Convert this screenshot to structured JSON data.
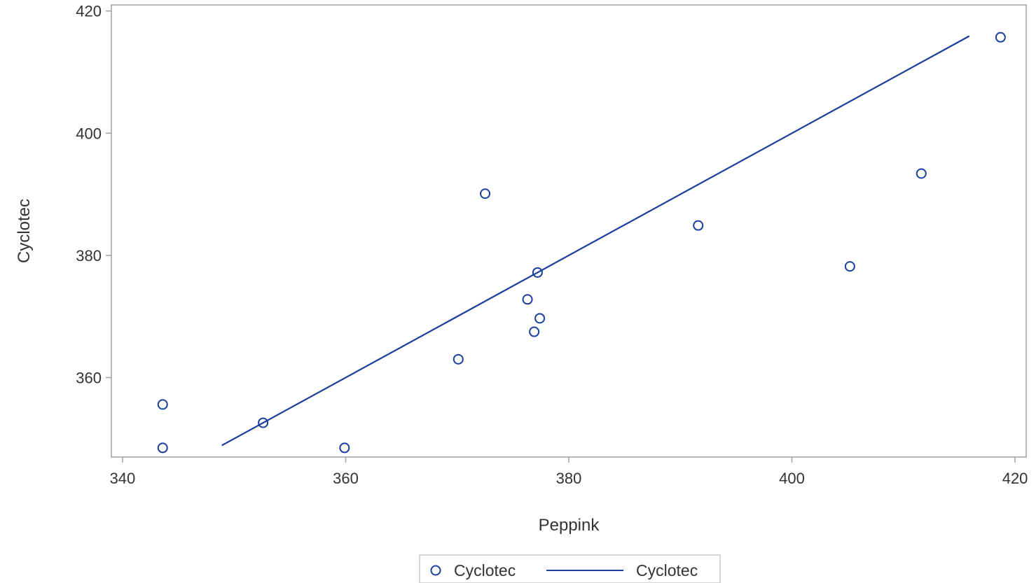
{
  "chart_data": {
    "type": "scatter",
    "xlabel": "Peppink",
    "ylabel": "Cyclotec",
    "xlim": [
      339,
      421
    ],
    "ylim": [
      347,
      421
    ],
    "xticks": [
      340,
      360,
      380,
      400,
      420
    ],
    "yticks": [
      360,
      380,
      400,
      420
    ],
    "grid": false,
    "legend_position": "bottom-center",
    "colors": {
      "series": "#1a3e9c",
      "frame": "#a0a0a0",
      "text": "#333333"
    },
    "series": [
      {
        "name": "Cyclotec",
        "kind": "scatter",
        "marker": "open-circle",
        "points": [
          {
            "x": 343.6,
            "y": 355.6
          },
          {
            "x": 343.6,
            "y": 348.5
          },
          {
            "x": 352.6,
            "y": 352.6
          },
          {
            "x": 359.9,
            "y": 348.5
          },
          {
            "x": 370.1,
            "y": 363.0
          },
          {
            "x": 372.5,
            "y": 390.1
          },
          {
            "x": 376.3,
            "y": 372.8
          },
          {
            "x": 376.9,
            "y": 367.5
          },
          {
            "x": 377.2,
            "y": 377.2
          },
          {
            "x": 377.4,
            "y": 369.7
          },
          {
            "x": 391.6,
            "y": 384.9
          },
          {
            "x": 405.2,
            "y": 378.2
          },
          {
            "x": 411.6,
            "y": 393.4
          },
          {
            "x": 418.7,
            "y": 415.7
          }
        ]
      },
      {
        "name": "Cyclotec",
        "kind": "line",
        "points": [
          {
            "x": 348.9,
            "y": 348.9
          },
          {
            "x": 415.9,
            "y": 415.9
          }
        ]
      }
    ]
  }
}
